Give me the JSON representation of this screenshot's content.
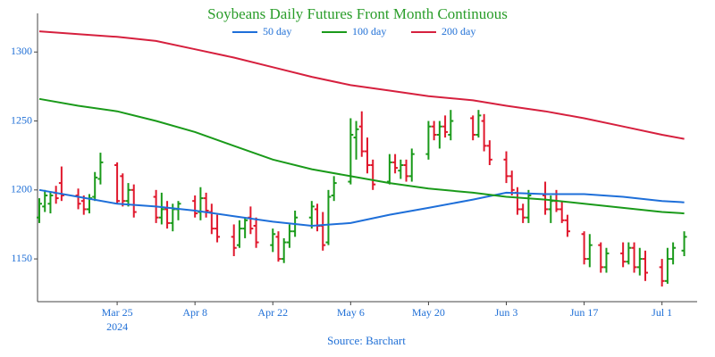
{
  "chart_data": {
    "type": "ohlc",
    "title": "Soybeans Daily Futures Front Month Continuous",
    "source": "Source: Barchart",
    "x": [
      "2024-03-11",
      "2024-03-12",
      "2024-03-13",
      "2024-03-14",
      "2024-03-15",
      "2024-03-18",
      "2024-03-19",
      "2024-03-20",
      "2024-03-21",
      "2024-03-22",
      "2024-03-25",
      "2024-03-26",
      "2024-03-27",
      "2024-03-28",
      "2024-04-01",
      "2024-04-02",
      "2024-04-03",
      "2024-04-04",
      "2024-04-05",
      "2024-04-08",
      "2024-04-09",
      "2024-04-10",
      "2024-04-11",
      "2024-04-12",
      "2024-04-15",
      "2024-04-16",
      "2024-04-17",
      "2024-04-18",
      "2024-04-19",
      "2024-04-22",
      "2024-04-23",
      "2024-04-24",
      "2024-04-25",
      "2024-04-26",
      "2024-04-29",
      "2024-04-30",
      "2024-05-01",
      "2024-05-02",
      "2024-05-03",
      "2024-05-06",
      "2024-05-07",
      "2024-05-08",
      "2024-05-09",
      "2024-05-10",
      "2024-05-13",
      "2024-05-14",
      "2024-05-15",
      "2024-05-16",
      "2024-05-17",
      "2024-05-20",
      "2024-05-21",
      "2024-05-22",
      "2024-05-23",
      "2024-05-24",
      "2024-05-28",
      "2024-05-29",
      "2024-05-30",
      "2024-05-31",
      "2024-06-03",
      "2024-06-04",
      "2024-06-05",
      "2024-06-06",
      "2024-06-07",
      "2024-06-10",
      "2024-06-11",
      "2024-06-12",
      "2024-06-13",
      "2024-06-14",
      "2024-06-17",
      "2024-06-18",
      "2024-06-20",
      "2024-06-21",
      "2024-06-24",
      "2024-06-25",
      "2024-06-26",
      "2024-06-27",
      "2024-06-28",
      "2024-07-01",
      "2024-07-02",
      "2024-07-03",
      "2024-07-05"
    ],
    "open": [
      1180,
      1188,
      1190,
      1198,
      1205,
      1196,
      1192,
      1186,
      1195,
      1208,
      1218,
      1210,
      1192,
      1200,
      1195,
      1180,
      1186,
      1176,
      1186,
      1192,
      1184,
      1194,
      1184,
      1172,
      1166,
      1160,
      1172,
      1180,
      1174,
      1160,
      1166,
      1150,
      1162,
      1170,
      1180,
      1186,
      1174,
      1162,
      1196,
      1206,
      1238,
      1246,
      1228,
      1218,
      1206,
      1220,
      1214,
      1218,
      1210,
      1226,
      1246,
      1240,
      1246,
      1240,
      1252,
      1240,
      1250,
      1232,
      1222,
      1210,
      1198,
      1186,
      1180,
      1196,
      1186,
      1192,
      1186,
      1178,
      1168,
      1150,
      1160,
      1144,
      1154,
      1148,
      1158,
      1144,
      1150,
      1144,
      1134,
      1150,
      1156
    ],
    "high": [
      1194,
      1200,
      1199,
      1203,
      1217,
      1201,
      1196,
      1197,
      1213,
      1227,
      1220,
      1212,
      1205,
      1204,
      1200,
      1198,
      1192,
      1190,
      1192,
      1196,
      1202,
      1198,
      1190,
      1182,
      1175,
      1178,
      1180,
      1188,
      1180,
      1172,
      1170,
      1165,
      1175,
      1185,
      1192,
      1190,
      1184,
      1200,
      1210,
      1252,
      1250,
      1257,
      1238,
      1222,
      1226,
      1226,
      1222,
      1222,
      1230,
      1250,
      1250,
      1250,
      1254,
      1258,
      1254,
      1258,
      1255,
      1236,
      1228,
      1214,
      1202,
      1190,
      1200,
      1206,
      1196,
      1200,
      1192,
      1182,
      1170,
      1168,
      1162,
      1158,
      1162,
      1162,
      1162,
      1158,
      1156,
      1150,
      1158,
      1162,
      1170
    ],
    "low": [
      1176,
      1184,
      1183,
      1190,
      1192,
      1186,
      1182,
      1183,
      1192,
      1204,
      1190,
      1188,
      1188,
      1180,
      1176,
      1175,
      1172,
      1170,
      1178,
      1180,
      1178,
      1180,
      1168,
      1162,
      1152,
      1158,
      1165,
      1168,
      1158,
      1155,
      1148,
      1147,
      1158,
      1166,
      1172,
      1170,
      1156,
      1160,
      1192,
      1204,
      1222,
      1224,
      1212,
      1200,
      1204,
      1212,
      1208,
      1206,
      1206,
      1222,
      1236,
      1230,
      1238,
      1236,
      1236,
      1238,
      1228,
      1218,
      1205,
      1196,
      1182,
      1176,
      1176,
      1182,
      1176,
      1184,
      1176,
      1166,
      1146,
      1144,
      1140,
      1140,
      1144,
      1146,
      1140,
      1138,
      1134,
      1130,
      1132,
      1146,
      1152
    ],
    "close": [
      1190,
      1196,
      1196,
      1194,
      1196,
      1190,
      1186,
      1194,
      1209,
      1220,
      1192,
      1192,
      1200,
      1184,
      1180,
      1186,
      1176,
      1186,
      1190,
      1183,
      1194,
      1185,
      1172,
      1166,
      1158,
      1172,
      1178,
      1172,
      1162,
      1168,
      1150,
      1162,
      1170,
      1180,
      1188,
      1174,
      1160,
      1195,
      1205,
      1240,
      1244,
      1228,
      1218,
      1204,
      1220,
      1216,
      1218,
      1210,
      1226,
      1246,
      1240,
      1246,
      1242,
      1250,
      1240,
      1254,
      1232,
      1222,
      1210,
      1200,
      1186,
      1180,
      1196,
      1186,
      1192,
      1186,
      1178,
      1170,
      1150,
      1160,
      1144,
      1154,
      1148,
      1158,
      1144,
      1150,
      1140,
      1134,
      1150,
      1158,
      1166
    ],
    "up_color": "#1a9a1a",
    "down_color": "#e0182d",
    "series": [
      {
        "name": "50 day",
        "color": "#1e6fd9",
        "x": [
          "2024-03-11",
          "2024-03-18",
          "2024-03-25",
          "2024-04-01",
          "2024-04-08",
          "2024-04-15",
          "2024-04-22",
          "2024-04-29",
          "2024-05-06",
          "2024-05-13",
          "2024-05-20",
          "2024-05-28",
          "2024-06-03",
          "2024-06-10",
          "2024-06-17",
          "2024-06-24",
          "2024-07-01",
          "2024-07-05"
        ],
        "values": [
          1200,
          1195,
          1190,
          1188,
          1185,
          1181,
          1177,
          1174,
          1176,
          1182,
          1187,
          1193,
          1198,
          1197,
          1197,
          1195,
          1192,
          1191
        ]
      },
      {
        "name": "100 day",
        "color": "#1a9a1a",
        "x": [
          "2024-03-11",
          "2024-03-18",
          "2024-03-25",
          "2024-04-01",
          "2024-04-08",
          "2024-04-15",
          "2024-04-22",
          "2024-04-29",
          "2024-05-06",
          "2024-05-13",
          "2024-05-20",
          "2024-05-28",
          "2024-06-03",
          "2024-06-10",
          "2024-06-17",
          "2024-06-24",
          "2024-07-01",
          "2024-07-05"
        ],
        "values": [
          1266,
          1261,
          1257,
          1250,
          1242,
          1232,
          1222,
          1215,
          1210,
          1205,
          1201,
          1198,
          1195,
          1193,
          1190,
          1187,
          1184,
          1183
        ]
      },
      {
        "name": "200 day",
        "color": "#d6203e",
        "x": [
          "2024-03-11",
          "2024-03-18",
          "2024-03-25",
          "2024-04-01",
          "2024-04-08",
          "2024-04-15",
          "2024-04-22",
          "2024-04-29",
          "2024-05-06",
          "2024-05-13",
          "2024-05-20",
          "2024-05-28",
          "2024-06-03",
          "2024-06-10",
          "2024-06-17",
          "2024-06-24",
          "2024-07-01",
          "2024-07-05"
        ],
        "values": [
          1315,
          1313,
          1311,
          1308,
          1302,
          1296,
          1289,
          1282,
          1276,
          1272,
          1268,
          1265,
          1261,
          1257,
          1252,
          1246,
          1240,
          1237
        ]
      }
    ],
    "xlim": [
      "2024-03-11",
      "2024-07-07"
    ],
    "xticks": [
      {
        "value": "2024-03-25",
        "label": "Mar 25"
      },
      {
        "value": "2024-04-08",
        "label": "Apr 8"
      },
      {
        "value": "2024-04-22",
        "label": "Apr 22"
      },
      {
        "value": "2024-05-06",
        "label": "May 6"
      },
      {
        "value": "2024-05-20",
        "label": "May 20"
      },
      {
        "value": "2024-06-03",
        "label": "Jun 3"
      },
      {
        "value": "2024-06-17",
        "label": "Jun 17"
      },
      {
        "value": "2024-07-01",
        "label": "Jul 1"
      }
    ],
    "x_year_label": "2024",
    "ylim": [
      1119,
      1328
    ],
    "yticks": [
      1150,
      1200,
      1250,
      1300
    ],
    "legend": "top"
  }
}
